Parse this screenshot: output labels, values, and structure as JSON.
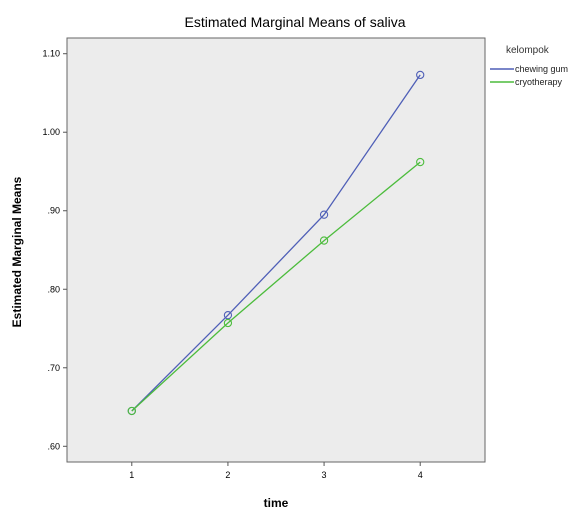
{
  "chart_data": {
    "type": "line",
    "title": "Estimated Marginal Means of saliva",
    "xlabel": "time",
    "ylabel": "Estimated Marginal Means",
    "categories": [
      "1",
      "2",
      "3",
      "4"
    ],
    "ylim": [
      0.58,
      1.12
    ],
    "yticks": [
      0.6,
      0.7,
      0.8,
      0.9,
      1.0,
      1.1
    ],
    "ytick_labels": [
      ".60",
      ".70",
      ".80",
      ".90",
      "1.00",
      "1.10"
    ],
    "grid": false,
    "legend": {
      "title": "kelompok",
      "placement": "right"
    },
    "series": [
      {
        "name": "chewing gum",
        "color": "#4f5fb7",
        "values": [
          0.645,
          0.767,
          0.895,
          1.073
        ]
      },
      {
        "name": "cryotherapy",
        "color": "#4cbc3c",
        "values": [
          0.645,
          0.757,
          0.862,
          0.962
        ]
      }
    ],
    "plot_background": "#ececec"
  }
}
